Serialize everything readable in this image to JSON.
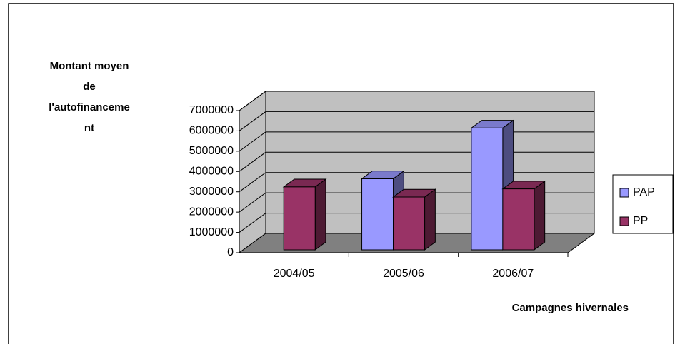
{
  "chart_data": {
    "type": "bar3d",
    "y_label_lines": [
      "Montant moyen",
      "de",
      "l'autofinanceme",
      "nt"
    ],
    "x_label": "Campagnes hivernales",
    "categories": [
      "2004/05",
      "2005/06",
      "2006/07"
    ],
    "series": [
      {
        "name": "PAP",
        "color": "#9999ff",
        "values": [
          null,
          3500000,
          6000000
        ]
      },
      {
        "name": "PP",
        "color": "#993366",
        "values": [
          3100000,
          2600000,
          3000000
        ]
      }
    ],
    "ylim": [
      0,
      7000000
    ],
    "yticks": [
      0,
      1000000,
      2000000,
      3000000,
      4000000,
      5000000,
      6000000,
      7000000
    ],
    "grid": true,
    "legend": "right"
  }
}
